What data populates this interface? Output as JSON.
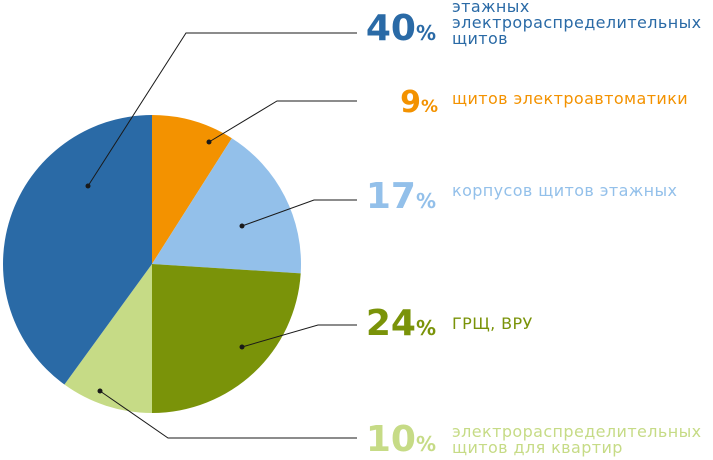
{
  "chart_data": {
    "type": "pie",
    "title": "",
    "slices": [
      {
        "value": 9,
        "pct_label": "9",
        "label_lines": [
          "щитов электроавтоматики"
        ],
        "color": "#f39200"
      },
      {
        "value": 17,
        "pct_label": "17",
        "label_lines": [
          "корпусов щитов этажных"
        ],
        "color": "#93c0ea"
      },
      {
        "value": 24,
        "pct_label": "24",
        "label_lines": [
          "ГРЩ, ВРУ"
        ],
        "color": "#7a9309"
      },
      {
        "value": 10,
        "pct_label": "10",
        "label_lines": [
          "электрораспределительных",
          "щитов для квартир"
        ],
        "color": "#c6db86"
      },
      {
        "value": 40,
        "pct_label": "40",
        "label_lines": [
          "этажных",
          "электрораспределительных",
          "щитов"
        ],
        "color": "#2a6aa6"
      }
    ],
    "percent_sign": "%",
    "legend": "right"
  }
}
